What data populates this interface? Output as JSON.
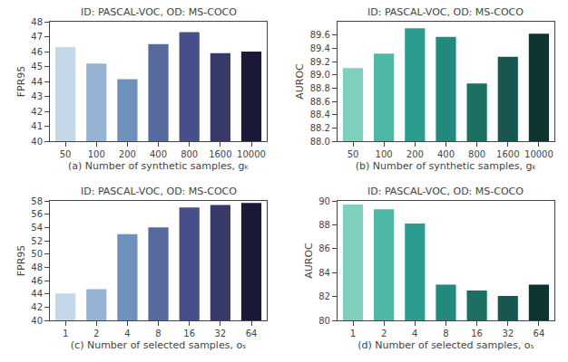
{
  "chart_data": [
    {
      "type": "bar",
      "title": "ID: PASCAL-VOC, OD: MS-COCO",
      "categories": [
        "50",
        "100",
        "200",
        "400",
        "800",
        "1600",
        "10000"
      ],
      "values": [
        46.3,
        45.2,
        44.15,
        46.5,
        47.3,
        45.9,
        46.0
      ],
      "colors": [
        "#c5d8ea",
        "#96b3d3",
        "#6d91ba",
        "#566a9e",
        "#464f87",
        "#38386b",
        "#1a1a38"
      ],
      "ylabel": "FPR95",
      "xlabel": "(a) Number of synthetic samples, gₖ",
      "ylim": [
        40,
        48
      ],
      "yticks": [
        40,
        41,
        42,
        43,
        44,
        45,
        46,
        47,
        48
      ],
      "grid": false
    },
    {
      "type": "bar",
      "title": "ID: PASCAL-VOC, OD: MS-COCO",
      "categories": [
        "50",
        "100",
        "200",
        "400",
        "800",
        "1600",
        "10000"
      ],
      "values": [
        89.1,
        89.32,
        89.7,
        89.57,
        88.87,
        89.27,
        89.62
      ],
      "colors": [
        "#7ecfbb",
        "#4db8a4",
        "#2a9d8f",
        "#23897c",
        "#1d6e63",
        "#175751",
        "#0d3530"
      ],
      "ylabel": "AUROC",
      "xlabel": "(b) Number of synthetic samples, gₖ",
      "ylim": [
        88.0,
        89.8
      ],
      "yticks": [
        {
          "value": 88.0,
          "label": "88.0"
        },
        88.2,
        88.4,
        88.6,
        88.8,
        {
          "value": 89.0,
          "label": "89.0"
        },
        89.2,
        89.4,
        89.6
      ],
      "grid": false
    },
    {
      "type": "bar",
      "title": "ID: PASCAL-VOC, OD: MS-COCO",
      "categories": [
        "1",
        "2",
        "4",
        "8",
        "16",
        "32",
        "64"
      ],
      "values": [
        44.05,
        44.7,
        53.0,
        54.0,
        57.0,
        57.4,
        57.7
      ],
      "colors": [
        "#c5d8ea",
        "#96b3d3",
        "#6d91ba",
        "#566a9e",
        "#464f87",
        "#38386b",
        "#1a1a38"
      ],
      "ylabel": "FPR95",
      "xlabel": "(c) Number of selected samples, oₛ",
      "ylim": [
        40,
        58
      ],
      "yticks": [
        40,
        42,
        44,
        46,
        48,
        50,
        52,
        54,
        56,
        58
      ],
      "grid": false
    },
    {
      "type": "bar",
      "title": "ID: PASCAL-VOC, OD: MS-COCO",
      "categories": [
        "1",
        "2",
        "4",
        "8",
        "16",
        "32",
        "64"
      ],
      "values": [
        89.7,
        89.3,
        88.1,
        83.0,
        82.5,
        82.05,
        83.0
      ],
      "colors": [
        "#7ecfbb",
        "#4db8a4",
        "#2a9d8f",
        "#23897c",
        "#1d6e63",
        "#175751",
        "#0d3530"
      ],
      "ylabel": "AUROC",
      "xlabel": "(d) Number of selected samples, oₛ",
      "ylim": [
        80,
        90
      ],
      "yticks": [
        80,
        82,
        84,
        86,
        88,
        90
      ],
      "grid": false
    }
  ]
}
